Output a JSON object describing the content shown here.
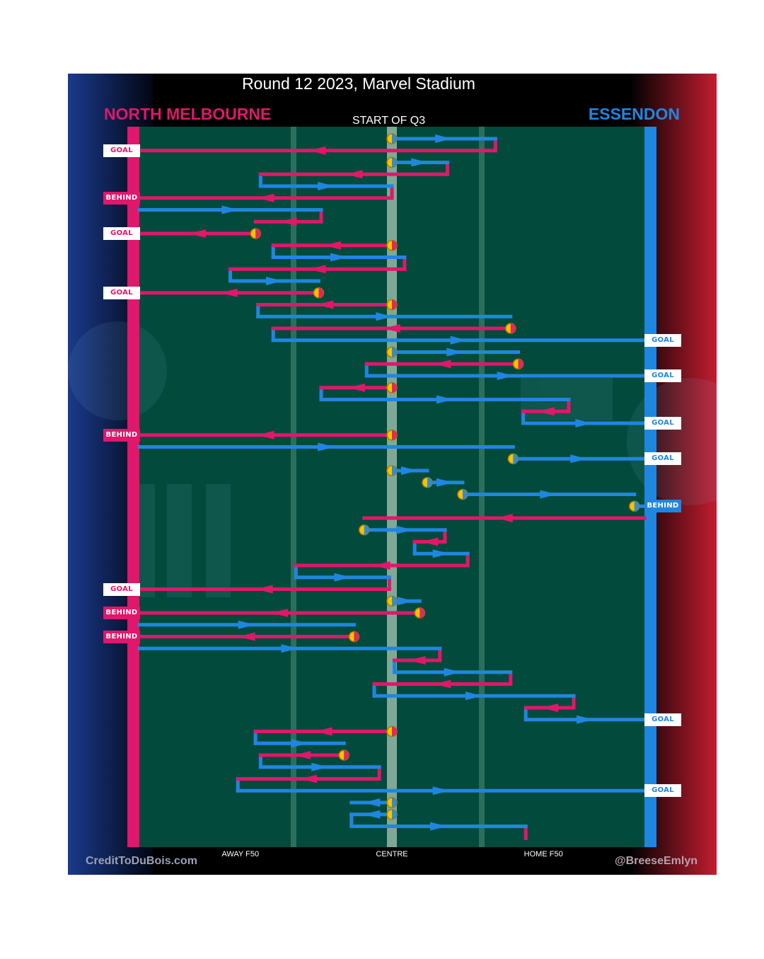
{
  "header": {
    "title": "Round 12 2023, Marvel Stadium",
    "home_team": "NORTH MELBOURNE",
    "away_team": "ESSENDON",
    "quarter_label": "START OF Q3"
  },
  "footer": {
    "credit_left": "CreditToDuBois.com",
    "credit_right": "@BreeseEmlyn"
  },
  "colors": {
    "north_melbourne": "#e0176a",
    "essendon": "#1f86e0",
    "ground": "#024a3c",
    "marker": "#f5c400"
  },
  "chart_data": {
    "type": "line",
    "title": "Round 12 2023, Marvel Stadium",
    "subtitle": "START OF Q3",
    "x_axis": {
      "range": [
        -100,
        100
      ],
      "ticks": [
        {
          "value": -60,
          "label": "AWAY F50"
        },
        {
          "value": 0,
          "label": "CENTRE"
        },
        {
          "value": 60,
          "label": "HOME F50"
        }
      ]
    },
    "teams": [
      "NORTH MELBOURNE",
      "ESSENDON"
    ],
    "chains": [
      {
        "team": "ESSENDON",
        "start": 0,
        "end": 41,
        "restart": true
      },
      {
        "team": "NORTH MELBOURNE",
        "start": 41,
        "end": -100,
        "result": "GOAL"
      },
      {
        "team": "ESSENDON",
        "start": 0,
        "end": 22,
        "restart": true
      },
      {
        "team": "NORTH MELBOURNE",
        "start": 22,
        "end": -52
      },
      {
        "team": "ESSENDON",
        "start": -52,
        "end": 0
      },
      {
        "team": "NORTH MELBOURNE",
        "start": 0,
        "end": -100,
        "result": "BEHIND"
      },
      {
        "team": "ESSENDON",
        "start": -100,
        "end": -28
      },
      {
        "team": "NORTH MELBOURNE",
        "start": -28,
        "end": -54
      },
      {
        "team": "NORTH MELBOURNE",
        "start": -54,
        "end": -100,
        "result": "GOAL",
        "restart": true
      },
      {
        "team": "NORTH MELBOURNE",
        "start": 0,
        "end": -47,
        "restart": true
      },
      {
        "team": "ESSENDON",
        "start": -47,
        "end": 5
      },
      {
        "team": "NORTH MELBOURNE",
        "start": 5,
        "end": -64
      },
      {
        "team": "ESSENDON",
        "start": -64,
        "end": -29
      },
      {
        "team": "NORTH MELBOURNE",
        "start": -29,
        "end": -100,
        "result": "GOAL",
        "restart": true
      },
      {
        "team": "NORTH MELBOURNE",
        "start": 0,
        "end": -53,
        "restart": true
      },
      {
        "team": "ESSENDON",
        "start": -53,
        "end": 47
      },
      {
        "team": "NORTH MELBOURNE",
        "start": 47,
        "end": -47,
        "restart": true
      },
      {
        "team": "ESSENDON",
        "start": -47,
        "end": 100,
        "result": "GOAL"
      },
      {
        "team": "ESSENDON",
        "start": 0,
        "end": 50,
        "restart": true
      },
      {
        "team": "NORTH MELBOURNE",
        "start": 50,
        "end": -10,
        "restart": true
      },
      {
        "team": "ESSENDON",
        "start": -10,
        "end": 100,
        "result": "GOAL"
      },
      {
        "team": "NORTH MELBOURNE",
        "start": 0,
        "end": -28,
        "restart": true
      },
      {
        "team": "ESSENDON",
        "start": -28,
        "end": 70
      },
      {
        "team": "NORTH MELBOURNE",
        "start": 70,
        "end": 52
      },
      {
        "team": "ESSENDON",
        "start": 52,
        "end": 100,
        "result": "GOAL"
      },
      {
        "team": "NORTH MELBOURNE",
        "start": 0,
        "end": -100,
        "result": "BEHIND",
        "restart": true
      },
      {
        "team": "ESSENDON",
        "start": -100,
        "end": 48
      },
      {
        "team": "ESSENDON",
        "start": 48,
        "end": 100,
        "result": "GOAL",
        "restart": true
      },
      {
        "team": "ESSENDON",
        "start": 0,
        "end": 14,
        "restart": true
      },
      {
        "team": "ESSENDON",
        "start": 14,
        "end": 28,
        "restart": true
      },
      {
        "team": "ESSENDON",
        "start": 28,
        "end": 96,
        "restart": true
      },
      {
        "team": "ESSENDON",
        "start": 96,
        "end": 100,
        "result": "BEHIND",
        "restart": true
      },
      {
        "team": "NORTH MELBOURNE",
        "start": 100,
        "end": -11
      },
      {
        "team": "ESSENDON",
        "start": -11,
        "end": 21,
        "restart": true
      },
      {
        "team": "NORTH MELBOURNE",
        "start": 21,
        "end": 9
      },
      {
        "team": "ESSENDON",
        "start": 9,
        "end": 30
      },
      {
        "team": "NORTH MELBOURNE",
        "start": 30,
        "end": -38
      },
      {
        "team": "ESSENDON",
        "start": -38,
        "end": -1
      },
      {
        "team": "NORTH MELBOURNE",
        "start": -1,
        "end": -100,
        "result": "GOAL"
      },
      {
        "team": "ESSENDON",
        "start": 0,
        "end": 11,
        "restart": true
      },
      {
        "team": "NORTH MELBOURNE",
        "start": 11,
        "end": -100,
        "result": "BEHIND",
        "restart": true
      },
      {
        "team": "ESSENDON",
        "start": -100,
        "end": -15
      },
      {
        "team": "NORTH MELBOURNE",
        "start": -15,
        "end": -100,
        "result": "BEHIND",
        "restart": true
      },
      {
        "team": "ESSENDON",
        "start": -100,
        "end": 19
      },
      {
        "team": "NORTH MELBOURNE",
        "start": 19,
        "end": 1
      },
      {
        "team": "ESSENDON",
        "start": 1,
        "end": 47
      },
      {
        "team": "NORTH MELBOURNE",
        "start": 47,
        "end": -7
      },
      {
        "team": "ESSENDON",
        "start": -7,
        "end": 72
      },
      {
        "team": "NORTH MELBOURNE",
        "start": 72,
        "end": 53
      },
      {
        "team": "ESSENDON",
        "start": 53,
        "end": 100,
        "result": "GOAL"
      },
      {
        "team": "NORTH MELBOURNE",
        "start": 0,
        "end": -54,
        "restart": true
      },
      {
        "team": "ESSENDON",
        "start": -54,
        "end": -19
      },
      {
        "team": "NORTH MELBOURNE",
        "start": -19,
        "end": -52,
        "restart": true
      },
      {
        "team": "ESSENDON",
        "start": -52,
        "end": -5
      },
      {
        "team": "NORTH MELBOURNE",
        "start": -5,
        "end": -61
      },
      {
        "team": "ESSENDON",
        "start": -61,
        "end": 100,
        "result": "GOAL"
      },
      {
        "team": "ESSENDON",
        "start": 0,
        "end": -16,
        "restart": true
      },
      {
        "team": "ESSENDON",
        "start": 0,
        "end": -16,
        "restart": true
      },
      {
        "team": "ESSENDON",
        "start": -16,
        "end": 53
      },
      {
        "team": "NORTH MELBOURNE",
        "start": 53,
        "end": 53
      }
    ]
  }
}
